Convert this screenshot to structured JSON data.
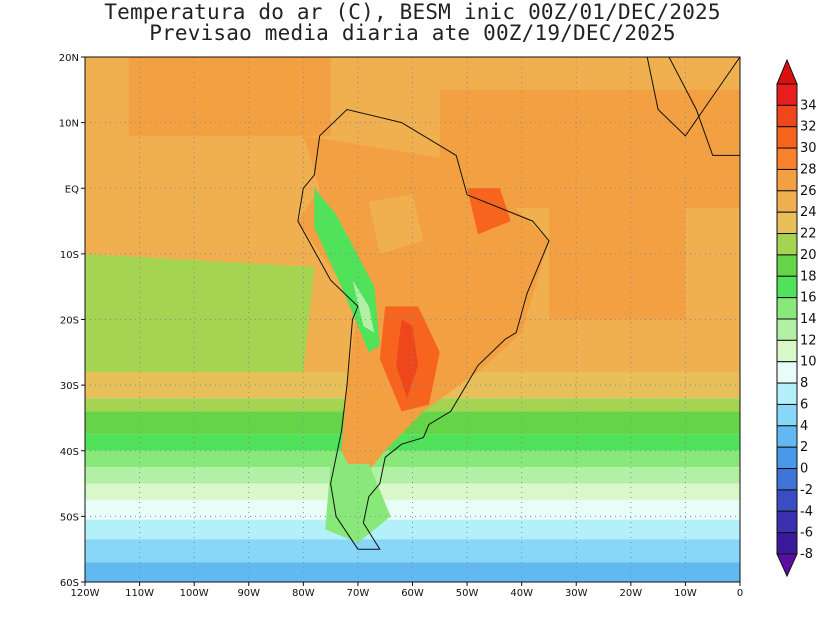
{
  "title": {
    "line1": "Temperatura do ar (C), BESM inic 00Z/01/DEC/2025",
    "line2": "Previsao media diaria ate 00Z/19/DEC/2025"
  },
  "map": {
    "lon_range": [
      -120,
      0
    ],
    "lat_range": [
      -60,
      20
    ],
    "lon_ticks": [
      {
        "value": -120,
        "label": "120W"
      },
      {
        "value": -110,
        "label": "110W"
      },
      {
        "value": -100,
        "label": "100W"
      },
      {
        "value": -90,
        "label": "90W"
      },
      {
        "value": -80,
        "label": "80W"
      },
      {
        "value": -70,
        "label": "70W"
      },
      {
        "value": -60,
        "label": "60W"
      },
      {
        "value": -50,
        "label": "50W"
      },
      {
        "value": -40,
        "label": "40W"
      },
      {
        "value": -30,
        "label": "30W"
      },
      {
        "value": -20,
        "label": "20W"
      },
      {
        "value": -10,
        "label": "10W"
      },
      {
        "value": 0,
        "label": "0"
      }
    ],
    "lat_ticks": [
      {
        "value": 20,
        "label": "20N"
      },
      {
        "value": 10,
        "label": "10N"
      },
      {
        "value": 0,
        "label": "EQ"
      },
      {
        "value": -10,
        "label": "10S"
      },
      {
        "value": -20,
        "label": "20S"
      },
      {
        "value": -30,
        "label": "30S"
      },
      {
        "value": -40,
        "label": "40S"
      },
      {
        "value": -50,
        "label": "50S"
      },
      {
        "value": -60,
        "label": "60S"
      }
    ],
    "field_bands": [
      {
        "lat_top": 20,
        "lat_bottom": -28,
        "value": 25
      },
      {
        "lat_top": -28,
        "lat_bottom": -32,
        "value": 23
      },
      {
        "lat_top": -32,
        "lat_bottom": -34,
        "value": 20
      },
      {
        "lat_top": -34,
        "lat_bottom": -37.5,
        "value": 18
      },
      {
        "lat_top": -37.5,
        "lat_bottom": -40,
        "value": 16
      },
      {
        "lat_top": -40,
        "lat_bottom": -42.5,
        "value": 14
      },
      {
        "lat_top": -42.5,
        "lat_bottom": -45,
        "value": 12
      },
      {
        "lat_top": -45,
        "lat_bottom": -47.5,
        "value": 10
      },
      {
        "lat_top": -47.5,
        "lat_bottom": -50.5,
        "value": 8
      },
      {
        "lat_top": -50.5,
        "lat_bottom": -53.5,
        "value": 6
      },
      {
        "lat_top": -53.5,
        "lat_bottom": -57,
        "value": 4
      },
      {
        "lat_top": -57,
        "lat_bottom": -60,
        "value": 2
      }
    ],
    "field_patches": [
      {
        "name": "eastern-pacific-warm",
        "value": 27,
        "lon": [
          -112,
          -75,
          -75,
          -112
        ],
        "lat": [
          20,
          20,
          8,
          8
        ]
      },
      {
        "name": "tropical-atlantic-warm",
        "value": 27,
        "lon": [
          -55,
          0,
          0,
          -55
        ],
        "lat": [
          15,
          15,
          -3,
          -3
        ]
      },
      {
        "name": "south-atlantic-warm",
        "value": 27,
        "lon": [
          -35,
          -10,
          -10,
          -35
        ],
        "lat": [
          -3,
          -3,
          -20,
          -20
        ]
      },
      {
        "name": "southeast-pacific-cool",
        "value": 21,
        "lon": [
          -120,
          -78,
          -80,
          -120
        ],
        "lat": [
          -10,
          -12,
          -28,
          -28
        ]
      },
      {
        "name": "south-america-land",
        "value": 27,
        "lon": [
          -80,
          -50,
          -35,
          -40,
          -48,
          -58,
          -65,
          -70,
          -73,
          -72,
          -70,
          -81,
          -77
        ],
        "lat": [
          8,
          4,
          -8,
          -22,
          -28,
          -34,
          -40,
          -45,
          -40,
          -30,
          -18,
          -5,
          0
        ]
      },
      {
        "name": "chaco-hot",
        "value": 31,
        "lon": [
          -65,
          -59,
          -55,
          -57,
          -62,
          -66
        ],
        "lat": [
          -18,
          -18,
          -25,
          -33,
          -34,
          -26
        ]
      },
      {
        "name": "chaco-core",
        "value": 33,
        "lon": [
          -62,
          -60,
          -59,
          -61,
          -63
        ],
        "lat": [
          -20,
          -21,
          -27,
          -32,
          -27
        ]
      },
      {
        "name": "northeast-brazil-hot",
        "value": 31,
        "lon": [
          -50,
          -44,
          -42,
          -48
        ],
        "lat": [
          0,
          0,
          -5,
          -7
        ]
      },
      {
        "name": "amazon-mild",
        "value": 25,
        "lon": [
          -68,
          -60,
          -58,
          -66
        ],
        "lat": [
          -2,
          -1,
          -8,
          -10
        ]
      },
      {
        "name": "andes-cool",
        "value": 17,
        "lon": [
          -78,
          -74,
          -67,
          -66,
          -68,
          -73,
          -78
        ],
        "lat": [
          0,
          -4,
          -15,
          -24,
          -25,
          -15,
          -6
        ]
      },
      {
        "name": "andes-peak",
        "value": 12,
        "lon": [
          -71,
          -68,
          -67,
          -69
        ],
        "lat": [
          -14,
          -18,
          -22,
          -21
        ]
      },
      {
        "name": "patagonia-cool",
        "value": 15,
        "lon": [
          -75,
          -68,
          -64,
          -70,
          -76
        ],
        "lat": [
          -42,
          -42,
          -50,
          -54,
          -52
        ]
      }
    ],
    "coastline_south_america": {
      "lon": [
        -77,
        -72,
        -62,
        -52,
        -50,
        -44,
        -38,
        -35,
        -39,
        -41,
        -43,
        -48,
        -53,
        -57,
        -58,
        -62,
        -65,
        -66,
        -68,
        -69,
        -66,
        -70,
        -74,
        -75,
        -73,
        -72,
        -71,
        -70,
        -75,
        -81,
        -80,
        -78,
        -77
      ],
      "lat": [
        8,
        12,
        10,
        5,
        -1,
        -3,
        -5,
        -8,
        -16,
        -22,
        -23,
        -27,
        -34,
        -36,
        -38,
        -39,
        -41,
        -45,
        -47,
        -51,
        -55,
        -55,
        -50,
        -45,
        -37,
        -30,
        -20,
        -18,
        -14,
        -5,
        0,
        2,
        8
      ]
    },
    "coastline_africa": {
      "lon": [
        -17,
        -13,
        -8,
        -5,
        0,
        0,
        -5,
        -10,
        -15,
        -17
      ],
      "lat": [
        20,
        20,
        12,
        5,
        5,
        20,
        14,
        8,
        12,
        20
      ]
    }
  },
  "colorbar": {
    "levels": [
      {
        "label": "34",
        "color": "#e81e1e"
      },
      {
        "label": "32",
        "color": "#f0461c"
      },
      {
        "label": "30",
        "color": "#f6641e"
      },
      {
        "label": "28",
        "color": "#f7822a"
      },
      {
        "label": "26",
        "color": "#f3a042"
      },
      {
        "label": "24",
        "color": "#f0b050"
      },
      {
        "label": "22",
        "color": "#e8c05a"
      },
      {
        "label": "20",
        "color": "#a5d452"
      },
      {
        "label": "18",
        "color": "#66d448"
      },
      {
        "label": "16",
        "color": "#4fe25a"
      },
      {
        "label": "14",
        "color": "#88e87a"
      },
      {
        "label": "12",
        "color": "#b2f0a5"
      },
      {
        "label": "10",
        "color": "#d8f8c9"
      },
      {
        "label": "8",
        "color": "#e8fcf8"
      },
      {
        "label": "6",
        "color": "#b4f0fa"
      },
      {
        "label": "4",
        "color": "#88d6f8"
      },
      {
        "label": "2",
        "color": "#62b8f0"
      },
      {
        "label": "0",
        "color": "#4a98e8"
      },
      {
        "label": "-2",
        "color": "#4074d6"
      },
      {
        "label": "-4",
        "color": "#3a4ec4"
      },
      {
        "label": "-6",
        "color": "#3a30b0"
      },
      {
        "label": "-8",
        "color": "#3a1a9a"
      }
    ],
    "top_arrow_color": "#dc0f0f",
    "bottom_arrow_color": "#5a0fa0"
  }
}
